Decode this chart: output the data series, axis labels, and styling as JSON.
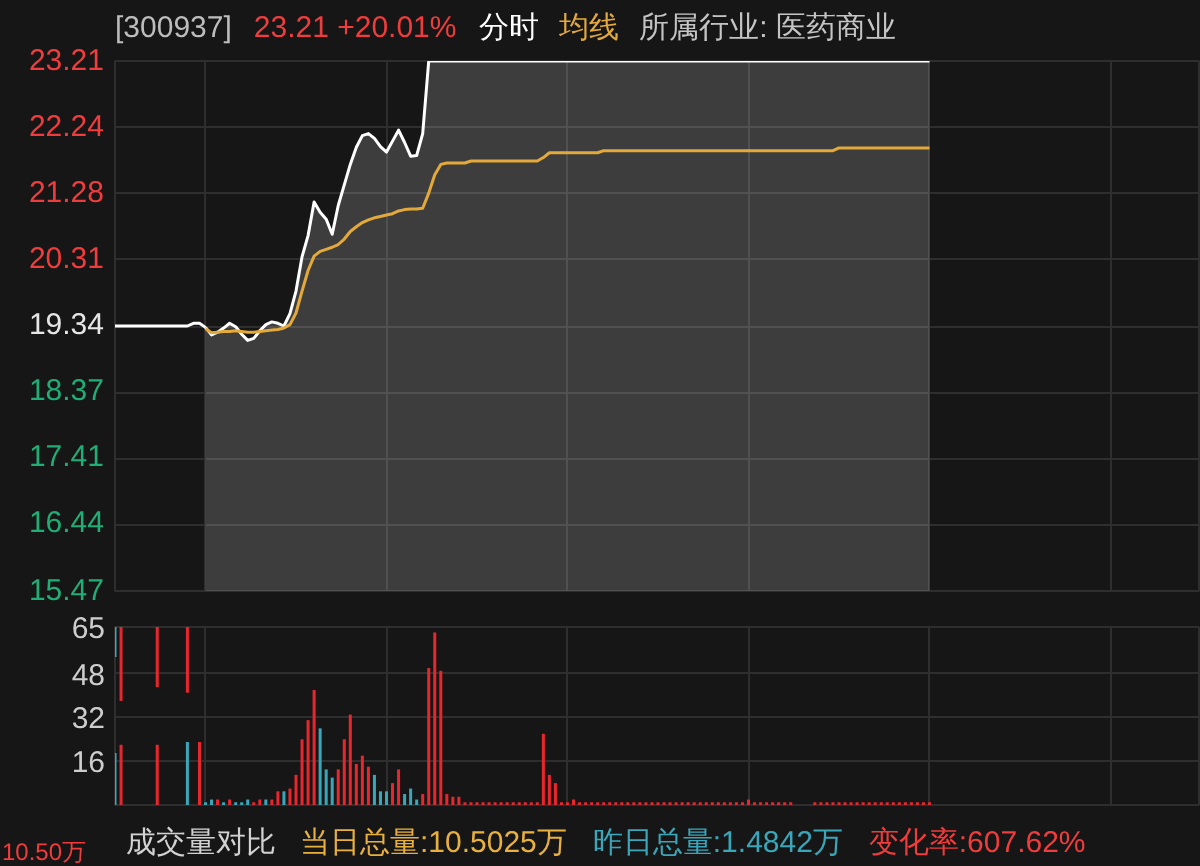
{
  "chart_data": [
    {
      "type": "line",
      "title": "[300937]",
      "subtitle": "23.21 +20.01%",
      "annotations": [
        "所属行业: 医药商业"
      ],
      "categories": [
        null,
        null,
        null,
        null,
        null,
        null,
        null,
        null,
        null,
        null,
        null,
        null,
        null,
        null,
        null,
        null,
        null,
        null,
        null,
        null,
        null,
        null,
        null,
        null,
        null,
        null,
        null,
        null,
        null,
        null,
        null,
        null,
        null,
        null,
        null,
        null,
        null,
        null,
        null,
        null,
        null,
        null,
        null,
        null,
        null,
        null,
        null,
        null,
        null,
        null,
        null,
        null,
        null,
        null,
        null,
        null,
        null,
        null,
        null,
        null,
        null,
        null,
        null,
        null,
        null,
        null,
        null,
        null,
        null,
        null,
        null,
        null,
        null,
        null,
        null,
        null,
        null,
        null,
        null,
        null,
        null,
        null,
        null,
        null,
        null,
        null,
        null,
        null,
        null,
        null,
        null,
        null,
        null,
        null,
        null,
        null,
        null,
        null,
        null,
        null,
        null,
        null,
        null,
        null,
        null,
        null,
        null,
        null,
        null,
        null,
        null,
        null,
        null,
        null,
        null,
        null,
        null,
        null,
        null,
        null,
        null,
        null,
        null,
        null,
        null,
        null,
        null,
        null,
        null,
        null,
        null,
        null,
        null,
        null,
        null,
        null,
        null,
        null,
        null,
        null,
        null,
        null,
        null,
        null,
        null,
        null,
        null,
        null,
        null,
        null,
        null,
        null,
        null,
        null,
        null,
        null,
        null,
        null,
        null,
        null,
        null,
        null,
        null,
        null,
        null,
        null,
        null,
        null,
        null,
        null,
        null,
        null,
        null,
        null,
        null,
        null,
        null,
        null,
        null,
        null,
        null
      ],
      "series": [
        {
          "type": "line",
          "color": "#ffffff",
          "values": [
            19.34,
            19.34,
            19.34,
            19.34,
            19.34,
            19.34,
            19.34,
            19.34,
            19.34,
            19.34,
            19.34,
            19.34,
            19.34,
            19.38,
            19.38,
            19.32,
            null,
            null,
            null,
            null,
            null,
            null,
            null,
            null,
            null,
            null,
            null,
            null,
            null,
            null,
            null,
            null,
            null,
            null,
            null,
            null,
            null,
            null,
            null,
            null,
            null,
            null,
            null,
            null,
            null,
            null,
            null,
            null,
            null,
            null,
            null,
            null,
            null,
            null,
            null,
            null,
            null,
            null,
            null,
            null,
            null,
            null,
            null,
            null,
            null,
            null,
            null,
            null,
            null,
            null,
            null,
            null,
            null,
            null,
            null,
            null,
            null,
            null,
            null,
            null,
            null,
            null,
            null,
            null,
            null,
            null,
            null,
            null,
            null,
            null,
            null,
            null,
            null,
            null,
            null,
            null,
            null,
            null,
            null,
            null,
            null,
            null,
            null,
            null,
            null,
            null,
            null,
            null,
            null,
            null,
            null,
            null,
            null,
            null,
            null,
            null,
            null,
            null,
            null,
            null,
            null,
            null,
            null,
            null,
            null,
            null,
            null,
            null,
            null,
            null,
            null,
            null,
            null,
            null,
            null,
            null,
            null,
            null,
            null,
            null,
            null,
            null,
            null,
            null,
            null,
            null,
            null,
            null,
            null,
            null,
            null,
            null,
            null,
            null,
            null,
            null,
            null,
            null,
            null,
            null,
            null,
            null,
            null,
            null,
            null,
            null,
            null,
            null,
            null,
            null,
            null,
            null,
            null,
            null,
            null,
            null,
            null,
            null,
            null,
            null,
            null
          ]
        },
        {
          "name": "分时",
          "type": "area",
          "color": "#ffffff",
          "values": [
            null,
            null,
            null,
            null,
            null,
            null,
            null,
            null,
            null,
            null,
            null,
            null,
            null,
            null,
            null,
            19.32,
            19.21,
            19.25,
            19.31,
            19.38,
            19.33,
            19.22,
            19.13,
            19.16,
            19.27,
            19.36,
            19.4,
            19.38,
            19.34,
            19.52,
            19.85,
            20.35,
            20.66,
            21.15,
            21.0,
            20.9,
            20.68,
            21.1,
            21.4,
            21.7,
            21.95,
            22.12,
            22.15,
            22.08,
            21.96,
            21.88,
            22.04,
            22.2,
            22.02,
            21.82,
            21.83,
            22.15,
            23.21,
            23.21,
            23.21,
            23.21,
            23.21,
            23.21,
            23.21,
            23.21,
            23.21,
            23.21,
            23.21,
            23.21,
            23.21,
            23.21,
            23.21,
            23.21,
            23.21,
            23.21,
            23.21,
            23.21,
            23.21,
            23.21,
            23.21,
            23.21,
            23.21,
            23.21,
            23.21,
            23.21,
            23.21,
            23.21,
            23.21,
            23.21,
            23.21,
            23.21,
            23.21,
            23.21,
            23.21,
            23.21,
            23.21,
            23.21,
            23.21,
            23.21,
            23.21,
            23.21,
            23.21,
            23.21,
            23.21,
            23.21,
            23.21,
            23.21,
            23.21,
            23.21,
            23.21,
            23.21,
            23.21,
            23.21,
            23.21,
            23.21,
            23.21,
            23.21,
            23.21,
            23.21,
            23.21,
            23.21,
            23.21,
            23.21,
            23.21,
            23.21,
            23.21,
            23.21,
            23.21,
            23.21,
            23.21,
            23.21,
            23.21,
            23.21,
            23.21,
            23.21,
            23.21,
            23.21,
            23.21,
            23.21,
            23.21,
            23.21,
            null,
            null,
            null,
            null,
            null,
            null,
            null,
            null,
            null,
            null,
            null,
            null,
            null,
            null,
            null,
            null,
            null,
            null,
            null,
            null,
            null,
            null,
            null,
            null,
            null,
            null,
            null,
            null,
            null,
            null,
            null,
            null,
            null,
            null,
            null,
            null,
            null,
            null,
            null,
            null,
            null,
            null,
            null,
            null,
            null
          ]
        },
        {
          "name": "均线",
          "type": "line",
          "color": "#e4a93b",
          "values": [
            null,
            null,
            null,
            null,
            null,
            null,
            null,
            null,
            null,
            null,
            null,
            null,
            null,
            null,
            null,
            19.3,
            19.24,
            19.25,
            19.26,
            19.26,
            19.27,
            19.26,
            19.25,
            19.25,
            19.26,
            19.27,
            19.28,
            19.29,
            19.31,
            19.36,
            19.53,
            19.85,
            20.15,
            20.36,
            20.43,
            20.46,
            20.49,
            20.53,
            20.61,
            20.72,
            20.79,
            20.85,
            20.89,
            20.92,
            20.94,
            20.96,
            20.98,
            21.02,
            21.04,
            21.05,
            21.05,
            21.06,
            21.28,
            21.55,
            21.7,
            21.72,
            21.72,
            21.72,
            21.72,
            21.75,
            21.75,
            21.75,
            21.75,
            21.75,
            21.75,
            21.75,
            21.75,
            21.75,
            21.75,
            21.75,
            21.75,
            21.8,
            21.87,
            21.87,
            21.87,
            21.87,
            21.87,
            21.87,
            21.87,
            21.87,
            21.87,
            21.9,
            21.9,
            21.9,
            21.9,
            21.9,
            21.9,
            21.9,
            21.9,
            21.9,
            21.9,
            21.9,
            21.9,
            21.9,
            21.9,
            21.9,
            21.9,
            21.9,
            21.9,
            21.9,
            21.9,
            21.9,
            21.9,
            21.9,
            21.9,
            21.9,
            21.9,
            21.9,
            21.9,
            21.9,
            21.9,
            21.9,
            21.9,
            21.9,
            21.9,
            21.9,
            21.9,
            21.9,
            21.9,
            21.9,
            21.94,
            21.94,
            21.94,
            21.94,
            21.94,
            21.94,
            21.94,
            21.94,
            21.94,
            21.94,
            21.94,
            21.94,
            21.94,
            21.94,
            21.94,
            21.94,
            null,
            null,
            null,
            null,
            null,
            null,
            null,
            null,
            null,
            null,
            null,
            null,
            null,
            null,
            null,
            null,
            null,
            null,
            null,
            null,
            null,
            null,
            null,
            null,
            null,
            null,
            null,
            null,
            null,
            null,
            null,
            null,
            null,
            null,
            null,
            null,
            null,
            null,
            null,
            null,
            null,
            null,
            null,
            null,
            null
          ]
        }
      ],
      "ylim": [
        15.47,
        23.21
      ],
      "yticks": [
        15.47,
        16.44,
        17.41,
        18.37,
        19.34,
        20.31,
        21.28,
        22.24,
        23.21
      ],
      "grid": true,
      "legend": "top",
      "tick_labels": "y"
    },
    {
      "type": "bar",
      "title": "成交量对比",
      "annotations": [
        "当日总量:10.5025万",
        "昨日总量:1.4842万",
        "变化率:607.62%",
        "10.50万"
      ],
      "categories": [
        null,
        null,
        null,
        null,
        null,
        null,
        null,
        null,
        null,
        null,
        null,
        null,
        null,
        null,
        null,
        null,
        null,
        null,
        null,
        null,
        null,
        null,
        null,
        null,
        null,
        null,
        null,
        null,
        null,
        null,
        null,
        null,
        null,
        null,
        null,
        null,
        null,
        null,
        null,
        null,
        null,
        null,
        null,
        null,
        null,
        null,
        null,
        null,
        null,
        null,
        null,
        null,
        null,
        null,
        null,
        null,
        null,
        null,
        null,
        null,
        null,
        null,
        null,
        null,
        null,
        null,
        null,
        null,
        null,
        null,
        null,
        null,
        null,
        null,
        null,
        null,
        null,
        null,
        null,
        null,
        null,
        null,
        null,
        null,
        null,
        null,
        null,
        null,
        null,
        null,
        null,
        null,
        null,
        null,
        null,
        null,
        null,
        null,
        null,
        null,
        null,
        null,
        null,
        null,
        null,
        null,
        null,
        null,
        null,
        null,
        null,
        null,
        null,
        null,
        null,
        null,
        null,
        null,
        null,
        null,
        null,
        null,
        null,
        null,
        null,
        null,
        null,
        null,
        null,
        null,
        null,
        null,
        null,
        null,
        null,
        null,
        null,
        null,
        null,
        null,
        null,
        null,
        null,
        null,
        null,
        null,
        null,
        null,
        null,
        null,
        null,
        null,
        null,
        null,
        null,
        null,
        null,
        null,
        null,
        null,
        null,
        null,
        null,
        null,
        null,
        null,
        null,
        null,
        null,
        null,
        null,
        null,
        null,
        null,
        null,
        null,
        null,
        null,
        null,
        null,
        null
      ],
      "series": [
        {
          "values": [
            19,
            22,
            null,
            null,
            null,
            null,
            null,
            22,
            null,
            null,
            null,
            null,
            23,
            null,
            23,
            1,
            2,
            2,
            1,
            2,
            1,
            1,
            2,
            1,
            2,
            2,
            2,
            5,
            5,
            6,
            11,
            24,
            31,
            42,
            28,
            13,
            10,
            13,
            24,
            33,
            15,
            18,
            14,
            11,
            5,
            5,
            8,
            13,
            4,
            6,
            2,
            4,
            50,
            63,
            49,
            4,
            3,
            3,
            1,
            1,
            1,
            1,
            1,
            1,
            1,
            1,
            1,
            1,
            1,
            1,
            1,
            26,
            11,
            8,
            1,
            1,
            2,
            1,
            1,
            1,
            1,
            1,
            1,
            1,
            1,
            1,
            1,
            1,
            1,
            1,
            1,
            1,
            1,
            1,
            1,
            1,
            1,
            1,
            1,
            1,
            1,
            1,
            1,
            1,
            1,
            2,
            1,
            1,
            1,
            1,
            1,
            1,
            1,
            null,
            null,
            null,
            1,
            1,
            1,
            1,
            1,
            1,
            1,
            1,
            1,
            1,
            1,
            1,
            1,
            1,
            1,
            1,
            1,
            1,
            1,
            1,
            null,
            null,
            null,
            null,
            null,
            null,
            null,
            null,
            null,
            null,
            null,
            null,
            null,
            null,
            null,
            null,
            null,
            null,
            null,
            null,
            null,
            null,
            null,
            null,
            null,
            null,
            null,
            null,
            null,
            null,
            null,
            null,
            null,
            null,
            null,
            null,
            null,
            null,
            null,
            null,
            null,
            null,
            null,
            null,
            null
          ],
          "colors": [
            "#3aa6b9",
            "#e8262d",
            null,
            null,
            null,
            null,
            null,
            "#e8262d",
            null,
            null,
            null,
            null,
            "#3aa6b9",
            null,
            "#e8262d",
            "#3aa6b9",
            "#3aa6b9",
            "#e8262d",
            "#3aa6b9",
            "#e8262d",
            "#3aa6b9",
            "#3aa6b9",
            "#3aa6b9",
            "#e8262d",
            "#e8262d",
            "#3aa6b9",
            "#e8262d",
            "#e8262d",
            "#3aa6b9",
            "#e8262d",
            "#e8262d",
            "#e8262d",
            "#e8262d",
            "#e8262d",
            "#3aa6b9",
            "#3aa6b9",
            "#3aa6b9",
            "#e8262d",
            "#e8262d",
            "#e8262d",
            "#e8262d",
            "#e8262d",
            "#e8262d",
            "#3aa6b9",
            "#3aa6b9",
            "#3aa6b9",
            "#e8262d",
            "#e8262d",
            "#3aa6b9",
            "#3aa6b9",
            "#3aa6b9",
            "#e8262d",
            "#e8262d",
            "#e8262d",
            "#e8262d",
            "#e8262d",
            "#e8262d",
            "#e8262d",
            "#e8262d",
            "#e8262d",
            "#e8262d",
            "#e8262d",
            "#e8262d",
            "#e8262d",
            "#e8262d",
            "#e8262d",
            "#e8262d",
            "#e8262d",
            "#e8262d",
            "#e8262d",
            "#e8262d",
            "#e8262d",
            "#e8262d",
            "#e8262d",
            "#e8262d",
            "#e8262d",
            "#e8262d",
            "#e8262d",
            "#e8262d",
            "#e8262d",
            "#e8262d",
            "#e8262d",
            "#e8262d",
            "#e8262d",
            "#e8262d",
            "#e8262d",
            "#e8262d",
            "#e8262d",
            "#e8262d",
            "#e8262d",
            "#e8262d",
            "#e8262d",
            "#e8262d",
            "#e8262d",
            "#e8262d",
            "#e8262d",
            "#e8262d",
            "#e8262d",
            "#e8262d",
            "#e8262d",
            "#e8262d",
            "#e8262d",
            "#e8262d",
            "#e8262d",
            "#e8262d",
            "#e8262d",
            "#e8262d",
            "#e8262d",
            "#e8262d",
            "#e8262d",
            "#e8262d",
            "#e8262d",
            "#e8262d",
            null,
            null,
            null,
            "#e8262d",
            "#e8262d",
            "#e8262d",
            "#e8262d",
            "#e8262d",
            "#e8262d",
            "#e8262d",
            "#e8262d",
            "#e8262d",
            "#e8262d",
            "#e8262d",
            "#e8262d",
            "#e8262d",
            "#e8262d",
            "#e8262d",
            "#e8262d",
            "#e8262d",
            "#e8262d",
            "#e8262d",
            "#e8262d",
            null,
            null,
            null,
            null,
            null,
            null,
            null,
            null,
            null,
            null,
            null,
            null,
            null,
            null,
            null,
            null,
            null,
            null,
            null,
            null,
            null,
            null,
            null,
            null,
            null,
            null,
            null,
            null,
            null,
            null,
            null,
            null,
            null,
            null,
            null,
            null,
            null,
            null,
            null,
            null,
            null,
            null,
            null,
            null,
            null
          ]
        },
        {
          "values": [
            11,
            27,
            null,
            null,
            null,
            null,
            null,
            22,
            null,
            null,
            null,
            null,
            24,
            null,
            null,
            null,
            null,
            null,
            null,
            null,
            null,
            null,
            null,
            null,
            null,
            null,
            null,
            null,
            null,
            null,
            null,
            null,
            null,
            null,
            null,
            null,
            null,
            null,
            null,
            null,
            null,
            null,
            null,
            null,
            null,
            null,
            null,
            null,
            null,
            null,
            null,
            null,
            null,
            null,
            null,
            null,
            null,
            null,
            null,
            null,
            null,
            null,
            null,
            null,
            null,
            null,
            null,
            null,
            null,
            null,
            null,
            null,
            null,
            null,
            null,
            null,
            null,
            null,
            null,
            null,
            null,
            null,
            null,
            null,
            null,
            null,
            null,
            null,
            null,
            null,
            null,
            null,
            null,
            null,
            null,
            null,
            null,
            null,
            null,
            null,
            null,
            null,
            null,
            null,
            null,
            null,
            null,
            null,
            null,
            null,
            null,
            null,
            null,
            null,
            null,
            null,
            null,
            null,
            null,
            null,
            null,
            null,
            null,
            null,
            null,
            null,
            null,
            null,
            null,
            null,
            null,
            null,
            null,
            null,
            null,
            null,
            null,
            null,
            null,
            null,
            null,
            null,
            null,
            null,
            null,
            null,
            null,
            null,
            null,
            null,
            null,
            null,
            null,
            null,
            null,
            null,
            null,
            null,
            null,
            null,
            null,
            null,
            null,
            null,
            null,
            null,
            null,
            null,
            null,
            null,
            null,
            null,
            null,
            null,
            null,
            null,
            null,
            null,
            null,
            null,
            null
          ],
          "base": [
            54,
            38,
            null,
            null,
            null,
            null,
            null,
            43,
            null,
            null,
            null,
            null,
            41,
            null,
            null,
            null,
            null,
            null,
            null,
            null,
            null,
            null,
            null,
            null,
            null,
            null,
            null,
            null,
            null,
            null,
            null,
            null,
            null,
            null,
            null,
            null,
            null,
            null,
            null,
            null,
            null,
            null,
            null,
            null,
            null,
            null,
            null,
            null,
            null,
            null,
            null,
            null,
            null,
            null,
            null,
            null,
            null,
            null,
            null,
            null,
            null,
            null,
            null,
            null,
            null,
            null,
            null,
            null,
            null,
            null,
            null,
            null,
            null,
            null,
            null,
            null,
            null,
            null,
            null,
            null,
            null,
            null,
            null,
            null,
            null,
            null,
            null,
            null,
            null,
            null,
            null,
            null,
            null,
            null,
            null,
            null,
            null,
            null,
            null,
            null,
            null,
            null,
            null,
            null,
            null,
            null,
            null,
            null,
            null,
            null,
            null,
            null,
            null,
            null,
            null,
            null,
            null,
            null,
            null,
            null,
            null,
            null,
            null,
            null,
            null,
            null,
            null,
            null,
            null,
            null,
            null,
            null,
            null,
            null,
            null,
            null,
            null,
            null,
            null,
            null,
            null,
            null,
            null,
            null,
            null,
            null,
            null,
            null,
            null,
            null,
            null,
            null,
            null,
            null,
            null,
            null,
            null,
            null,
            null,
            null,
            null,
            null,
            null,
            null,
            null,
            null,
            null,
            null,
            null,
            null,
            null,
            null,
            null,
            null,
            null,
            null,
            null,
            null,
            null,
            null,
            null
          ],
          "colors": [
            "#3aa6b9",
            "#e8262d",
            null,
            null,
            null,
            null,
            null,
            "#e8262d",
            null,
            null,
            null,
            null,
            "#e8262d",
            null,
            null,
            null,
            null,
            null,
            null,
            null,
            null,
            null,
            null,
            null,
            null,
            null,
            null,
            null,
            null,
            null,
            null,
            null,
            null,
            null,
            null,
            null,
            null,
            null,
            null,
            null,
            null,
            null,
            null,
            null,
            null,
            null,
            null,
            null,
            null,
            null,
            null,
            null,
            null,
            null,
            null,
            null,
            null,
            null,
            null,
            null,
            null,
            null,
            null,
            null,
            null,
            null,
            null,
            null,
            null,
            null,
            null,
            null,
            null,
            null,
            null,
            null,
            null,
            null,
            null,
            null,
            null,
            null,
            null,
            null,
            null,
            null,
            null,
            null,
            null,
            null,
            null,
            null,
            null,
            null,
            null,
            null,
            null,
            null,
            null,
            null,
            null,
            null,
            null,
            null,
            null,
            null,
            null,
            null,
            null,
            null,
            null,
            null,
            null,
            null,
            null,
            null,
            null,
            null,
            null,
            null,
            null,
            null,
            null,
            null,
            null,
            null,
            null,
            null,
            null,
            null,
            null,
            null,
            null,
            null,
            null,
            null,
            null,
            null,
            null,
            null,
            null,
            null,
            null,
            null,
            null,
            null,
            null,
            null,
            null,
            null,
            null,
            null,
            null,
            null,
            null,
            null,
            null,
            null,
            null,
            null,
            null,
            null,
            null,
            null,
            null,
            null,
            null,
            null,
            null,
            null,
            null,
            null,
            null,
            null,
            null,
            null,
            null,
            null,
            null,
            null,
            null
          ]
        }
      ],
      "ylim": [
        0,
        65
      ],
      "yticks": [
        16,
        32,
        48,
        65
      ],
      "grid": true,
      "tick_labels": "y"
    }
  ]
}
